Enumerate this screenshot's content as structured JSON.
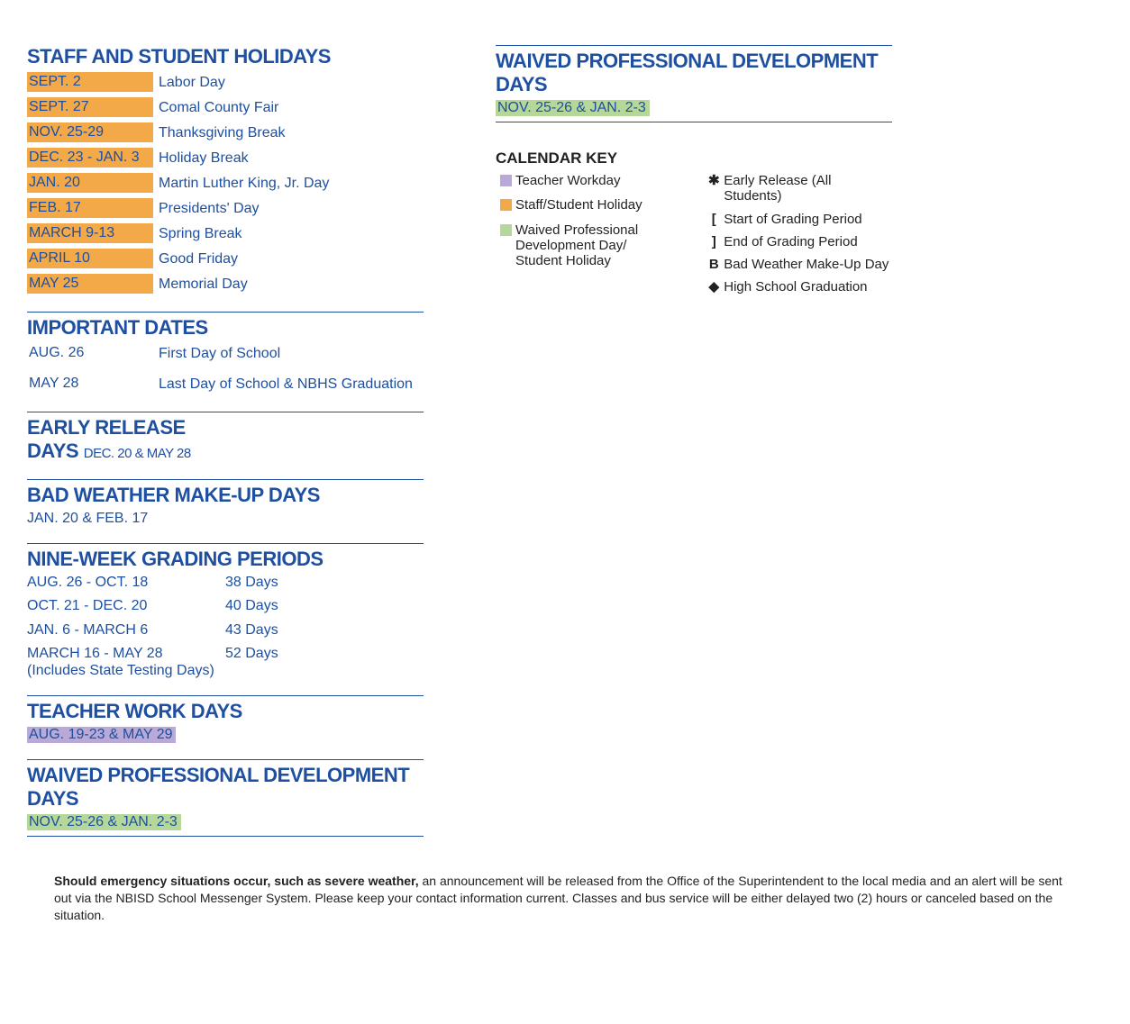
{
  "colors": {
    "brand_blue": "#1E4FA0",
    "orange": "#F4A948",
    "purple": "#B8A9D6",
    "green": "#B5D89A",
    "black": "#222222",
    "white": "#ffffff"
  },
  "typography": {
    "heading_family": "Arial Narrow / Helvetica Neue Condensed",
    "heading_weight": 900,
    "heading_size_pt": 16,
    "body_family": "Helvetica Neue",
    "body_size_pt": 12
  },
  "left": {
    "holidays": {
      "title": "STAFF AND STUDENT HOLIDAYS",
      "rows": [
        {
          "date": "SEPT. 2",
          "desc": "Labor Day"
        },
        {
          "date": "SEPT. 27",
          "desc": "Comal County Fair"
        },
        {
          "date": "NOV. 25-29",
          "desc": "Thanksgiving Break"
        },
        {
          "date": "DEC. 23 - JAN. 3",
          "desc": "Holiday Break"
        },
        {
          "date": "JAN. 20",
          "desc": "Martin Luther King, Jr. Day"
        },
        {
          "date": "FEB. 17",
          "desc": "Presidents' Day"
        },
        {
          "date": "MARCH 9-13",
          "desc": "Spring Break"
        },
        {
          "date": "APRIL 10",
          "desc": "Good Friday"
        },
        {
          "date": "MAY 25",
          "desc": "Memorial Day"
        }
      ]
    },
    "important": {
      "title": "IMPORTANT DATES",
      "rows": [
        {
          "date": "AUG. 26",
          "desc": "First Day of School"
        },
        {
          "date": "MAY 28",
          "desc": "Last Day of School & NBHS Graduation"
        }
      ]
    },
    "early_release": {
      "title_part1": "EARLY RELEASE",
      "title_part2": "DAYS",
      "dates": "DEC. 20 & MAY 28"
    },
    "bad_weather": {
      "title": "BAD WEATHER MAKE-UP DAYS",
      "dates": "JAN. 20 & FEB. 17"
    },
    "grading": {
      "title": "NINE-WEEK GRADING PERIODS",
      "rows": [
        {
          "range": "AUG. 26 - OCT. 18",
          "days": "38 Days"
        },
        {
          "range": "OCT. 21 - DEC. 20",
          "days": "40 Days"
        },
        {
          "range": "JAN. 6 - MARCH 6",
          "days": "43 Days"
        },
        {
          "range": "MARCH 16 - MAY 28\n(Includes State Testing Days)",
          "days": "52 Days"
        }
      ]
    },
    "teacher_work": {
      "title": "TEACHER WORK DAYS",
      "dates": "AUG. 19-23 & MAY 29"
    },
    "waived_pd": {
      "title": "WAIVED PROFESSIONAL DEVELOPMENT DAYS",
      "dates": "NOV. 25-26 & JAN. 2-3"
    }
  },
  "right": {
    "waived_pd": {
      "title": "WAIVED PROFESSIONAL DEVELOPMENT DAYS",
      "dates": "NOV. 25-26 & JAN. 2-3"
    },
    "key": {
      "title": "CALENDAR KEY",
      "col1": [
        {
          "type": "swatch",
          "color": "#B8A9D6",
          "label": "Teacher Workday"
        },
        {
          "type": "swatch",
          "color": "#F4A948",
          "label": "Staff/Student Holiday"
        },
        {
          "type": "swatch",
          "color": "#B5D89A",
          "label": "Waived Professional Development Day/ Student Holiday"
        }
      ],
      "col2": [
        {
          "type": "symbol",
          "symbol": "✱",
          "label": "Early Release (All Students)"
        },
        {
          "type": "symbol",
          "symbol": "[",
          "label": "Start of Grading Period"
        },
        {
          "type": "symbol",
          "symbol": "]",
          "label": "End of Grading Period"
        },
        {
          "type": "symbol",
          "symbol": "B",
          "label": "Bad Weather Make-Up Day"
        },
        {
          "type": "symbol",
          "symbol": "◆",
          "label": "High School Graduation"
        }
      ]
    }
  },
  "footer": {
    "bold": "Should emergency situations occur, such as severe weather,",
    "rest": " an announcement will be released from the Office of the Superintendent to the local media and an alert will be sent out via the NBISD School Messenger System. Please keep your contact information current. Classes and bus service will be either delayed two (2) hours or canceled based on the situation."
  }
}
